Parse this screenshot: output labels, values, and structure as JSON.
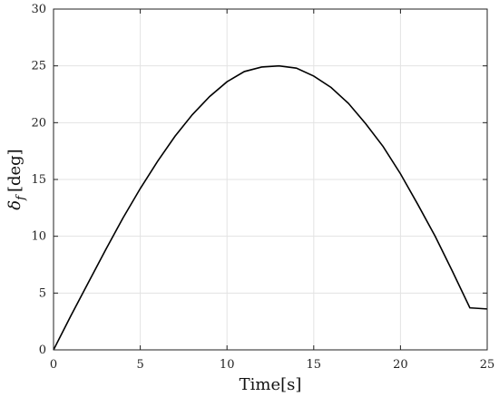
{
  "chart_data": {
    "type": "line",
    "xlabel": "Time[s]",
    "ylabel_main": "δ",
    "ylabel_sub": "f",
    "ylabel_unit": "[deg]",
    "xlim": [
      0,
      25
    ],
    "ylim": [
      0,
      30
    ],
    "xticks": [
      0,
      5,
      10,
      15,
      20,
      25
    ],
    "yticks": [
      0,
      5,
      10,
      15,
      20,
      25,
      30
    ],
    "grid": true,
    "series": [
      {
        "color": "#000000",
        "x": [
          0,
          1,
          2,
          3,
          4,
          5,
          6,
          7,
          8,
          9,
          10,
          11,
          12,
          13,
          14,
          15,
          16,
          17,
          18,
          19,
          20,
          21,
          22,
          23,
          24,
          25
        ],
        "y": [
          0.0,
          3.0,
          5.9,
          8.8,
          11.6,
          14.2,
          16.6,
          18.8,
          20.7,
          22.3,
          23.6,
          24.5,
          24.9,
          25.0,
          24.8,
          24.1,
          23.1,
          21.7,
          19.9,
          17.9,
          15.5,
          12.8,
          10.0,
          6.9,
          3.7,
          3.6
        ]
      }
    ]
  }
}
